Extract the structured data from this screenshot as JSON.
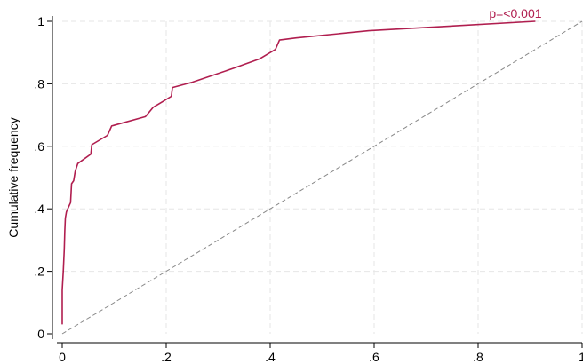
{
  "chart_data": {
    "type": "line",
    "title": "",
    "xlabel": "",
    "ylabel": "Cumulative frequency",
    "xlim": [
      0,
      1
    ],
    "ylim": [
      0,
      1
    ],
    "grid": true,
    "x_ticks": [
      0,
      0.2,
      0.4,
      0.6,
      0.8,
      1
    ],
    "x_tick_labels": [
      "0",
      ".2",
      ".4",
      ".6",
      ".8",
      "1"
    ],
    "y_ticks": [
      0,
      0.2,
      0.4,
      0.6,
      0.8,
      1
    ],
    "y_tick_labels": [
      "0",
      ".2",
      ".4",
      ".6",
      ".8",
      "1"
    ],
    "annotation": {
      "text": "p=<0.001",
      "x": 0.91,
      "y": 1.0
    },
    "colors": {
      "curve": "#b01e4f",
      "reference": "#888888",
      "grid": "#e6e6e6"
    },
    "series": [
      {
        "values": [
          [
            0.0,
            0.03
          ],
          [
            0.0,
            0.14
          ],
          [
            0.002,
            0.2
          ],
          [
            0.004,
            0.27
          ],
          [
            0.005,
            0.33
          ],
          [
            0.006,
            0.37
          ],
          [
            0.008,
            0.39
          ],
          [
            0.012,
            0.405
          ],
          [
            0.016,
            0.42
          ],
          [
            0.018,
            0.48
          ],
          [
            0.022,
            0.49
          ],
          [
            0.025,
            0.52
          ],
          [
            0.03,
            0.545
          ],
          [
            0.055,
            0.575
          ],
          [
            0.057,
            0.605
          ],
          [
            0.087,
            0.635
          ],
          [
            0.095,
            0.665
          ],
          [
            0.16,
            0.695
          ],
          [
            0.175,
            0.725
          ],
          [
            0.195,
            0.745
          ],
          [
            0.21,
            0.76
          ],
          [
            0.212,
            0.788
          ],
          [
            0.25,
            0.805
          ],
          [
            0.33,
            0.85
          ],
          [
            0.38,
            0.88
          ],
          [
            0.41,
            0.91
          ],
          [
            0.418,
            0.94
          ],
          [
            0.45,
            0.947
          ],
          [
            0.59,
            0.97
          ],
          [
            0.91,
            1.0
          ]
        ]
      },
      {
        "values": [
          [
            0,
            0
          ],
          [
            1,
            1
          ]
        ]
      }
    ]
  }
}
